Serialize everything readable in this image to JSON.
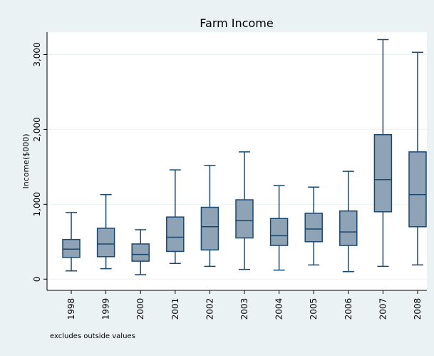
{
  "chart_data": {
    "type": "box",
    "title": "Farm Income",
    "ylabel": "Income($000)",
    "xlabel": "",
    "note": "excludes outside values",
    "ylim": [
      -150,
      3300
    ],
    "yticks": [
      0,
      1000,
      2000,
      3000
    ],
    "ytick_labels": [
      "0",
      "1,000",
      "2,000",
      "3,000"
    ],
    "grid": true,
    "colors": {
      "box_fill": "#8ea3b5",
      "stroke": "#1a476f",
      "plot_bg": "#ffffff",
      "page_bg": "#eaf2f3",
      "grid": "#eaf2f3"
    },
    "categories": [
      "1998",
      "1999",
      "2000",
      "2001",
      "2002",
      "2003",
      "2004",
      "2005",
      "2006",
      "2007",
      "2008"
    ],
    "boxes": [
      {
        "whisker_low": 110,
        "q1": 290,
        "median": 400,
        "q3": 530,
        "whisker_high": 890
      },
      {
        "whisker_low": 140,
        "q1": 300,
        "median": 470,
        "q3": 680,
        "whisker_high": 1130
      },
      {
        "whisker_low": 60,
        "q1": 240,
        "median": 330,
        "q3": 470,
        "whisker_high": 660
      },
      {
        "whisker_low": 210,
        "q1": 370,
        "median": 560,
        "q3": 830,
        "whisker_high": 1460
      },
      {
        "whisker_low": 170,
        "q1": 390,
        "median": 700,
        "q3": 960,
        "whisker_high": 1520
      },
      {
        "whisker_low": 130,
        "q1": 550,
        "median": 780,
        "q3": 1060,
        "whisker_high": 1700
      },
      {
        "whisker_low": 120,
        "q1": 450,
        "median": 580,
        "q3": 810,
        "whisker_high": 1250
      },
      {
        "whisker_low": 190,
        "q1": 500,
        "median": 670,
        "q3": 880,
        "whisker_high": 1230
      },
      {
        "whisker_low": 100,
        "q1": 450,
        "median": 630,
        "q3": 910,
        "whisker_high": 1440
      },
      {
        "whisker_low": 170,
        "q1": 900,
        "median": 1330,
        "q3": 1930,
        "whisker_high": 3200
      },
      {
        "whisker_low": 190,
        "q1": 700,
        "median": 1130,
        "q3": 1700,
        "whisker_high": 3030
      }
    ]
  }
}
